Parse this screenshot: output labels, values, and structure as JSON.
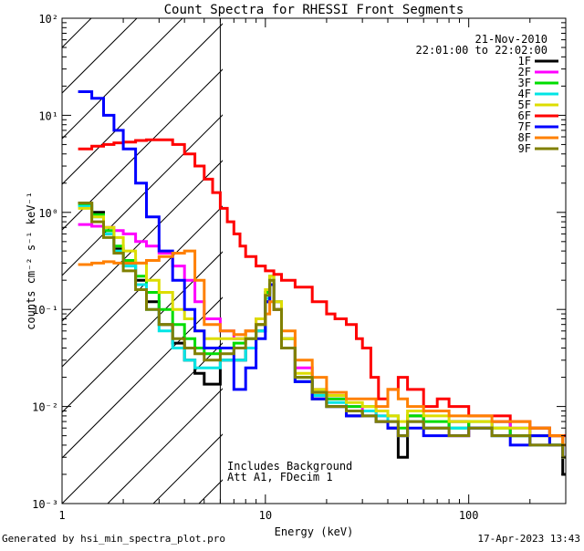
{
  "chart_data": {
    "type": "line",
    "title": "Count Spectra for RHESSI Front Segments",
    "xlabel": "Energy (keV)",
    "ylabel": "counts cm⁻² s⁻¹ keV⁻¹",
    "x_scale": "log",
    "y_scale": "log",
    "xlim": [
      1,
      300
    ],
    "ylim": [
      0.001,
      100
    ],
    "x_ticks": [
      {
        "value": 1,
        "label": "1"
      },
      {
        "value": 10,
        "label": "10"
      },
      {
        "value": 100,
        "label": "100"
      }
    ],
    "y_ticks": [
      {
        "value": 0.001,
        "label": "10⁻³"
      },
      {
        "value": 0.01,
        "label": "10⁻²"
      },
      {
        "value": 0.1,
        "label": "10⁻¹"
      },
      {
        "value": 1,
        "label": "10⁰"
      },
      {
        "value": 10,
        "label": "10¹"
      },
      {
        "value": 100,
        "label": "10²"
      }
    ],
    "hatched_region_x": [
      1,
      6
    ],
    "vertical_marker_x": 6,
    "date": "21-Nov-2010",
    "time_range": "22:01:00 to 22:02:00",
    "annotation_lines": [
      "Includes Background",
      "Att A1, FDecim 1"
    ],
    "legend_position": "top-right",
    "series": [
      {
        "name": "1F",
        "color": "#000000",
        "x": [
          1.2,
          1.4,
          1.6,
          1.8,
          2.0,
          2.3,
          2.6,
          3.0,
          3.5,
          4.0,
          4.5,
          5.0,
          6.0,
          7.0,
          8.0,
          9.0,
          10.0,
          10.5,
          11.0,
          12.0,
          14.0,
          17.0,
          20.0,
          25.0,
          30.0,
          35.0,
          40.0,
          45.0,
          50.0,
          60.0,
          80.0,
          100.0,
          130.0,
          160.0,
          200.0,
          250.0,
          290.0
        ],
        "y": [
          1.25,
          1.0,
          0.6,
          0.42,
          0.3,
          0.2,
          0.12,
          0.07,
          0.045,
          0.03,
          0.022,
          0.017,
          0.03,
          0.03,
          0.04,
          0.06,
          0.12,
          0.18,
          0.1,
          0.04,
          0.018,
          0.012,
          0.01,
          0.008,
          0.009,
          0.007,
          0.006,
          0.003,
          0.008,
          0.006,
          0.007,
          0.006,
          0.007,
          0.005,
          0.006,
          0.005,
          0.002
        ]
      },
      {
        "name": "2F",
        "color": "#ff00ff",
        "x": [
          1.2,
          1.4,
          1.6,
          1.8,
          2.0,
          2.3,
          2.6,
          3.0,
          3.5,
          4.0,
          4.5,
          5.0,
          6.0,
          7.0,
          8.0,
          9.0,
          10.0,
          10.5,
          11.0,
          12.0,
          14.0,
          17.0,
          20.0,
          25.0,
          30.0,
          35.0,
          40.0,
          45.0,
          50.0,
          60.0,
          80.0,
          100.0,
          130.0,
          160.0,
          200.0,
          250.0,
          290.0
        ],
        "y": [
          0.75,
          0.72,
          0.7,
          0.65,
          0.6,
          0.5,
          0.45,
          0.38,
          0.28,
          0.2,
          0.12,
          0.08,
          0.06,
          0.05,
          0.06,
          0.08,
          0.15,
          0.2,
          0.12,
          0.05,
          0.025,
          0.015,
          0.012,
          0.01,
          0.009,
          0.008,
          0.007,
          0.005,
          0.007,
          0.006,
          0.005,
          0.006,
          0.007,
          0.006,
          0.004,
          0.005,
          0.003
        ]
      },
      {
        "name": "3F",
        "color": "#00dd00",
        "x": [
          1.2,
          1.4,
          1.6,
          1.8,
          2.0,
          2.3,
          2.6,
          3.0,
          3.5,
          4.0,
          4.5,
          5.0,
          6.0,
          7.0,
          8.0,
          9.0,
          10.0,
          10.5,
          11.0,
          12.0,
          14.0,
          17.0,
          20.0,
          25.0,
          30.0,
          35.0,
          40.0,
          45.0,
          50.0,
          60.0,
          80.0,
          100.0,
          130.0,
          160.0,
          200.0,
          250.0,
          290.0
        ],
        "y": [
          1.2,
          0.95,
          0.65,
          0.45,
          0.32,
          0.22,
          0.15,
          0.1,
          0.07,
          0.05,
          0.04,
          0.035,
          0.04,
          0.045,
          0.05,
          0.07,
          0.15,
          0.22,
          0.12,
          0.05,
          0.02,
          0.014,
          0.012,
          0.01,
          0.01,
          0.009,
          0.008,
          0.006,
          0.008,
          0.007,
          0.006,
          0.007,
          0.006,
          0.005,
          0.005,
          0.004,
          0.004
        ]
      },
      {
        "name": "4F",
        "color": "#00e5e5",
        "x": [
          1.2,
          1.4,
          1.6,
          1.8,
          2.0,
          2.3,
          2.6,
          3.0,
          3.5,
          4.0,
          4.5,
          5.0,
          6.0,
          7.0,
          8.0,
          9.0,
          10.0,
          10.5,
          11.0,
          12.0,
          14.0,
          17.0,
          20.0,
          25.0,
          30.0,
          35.0,
          40.0,
          45.0,
          50.0,
          60.0,
          80.0,
          100.0,
          130.0,
          160.0,
          200.0,
          250.0,
          290.0
        ],
        "y": [
          1.15,
          0.9,
          0.6,
          0.4,
          0.28,
          0.18,
          0.1,
          0.06,
          0.04,
          0.03,
          0.025,
          0.025,
          0.03,
          0.03,
          0.04,
          0.06,
          0.13,
          0.2,
          0.1,
          0.04,
          0.018,
          0.013,
          0.011,
          0.009,
          0.009,
          0.008,
          0.007,
          0.005,
          0.007,
          0.006,
          0.006,
          0.006,
          0.005,
          0.005,
          0.004,
          0.004,
          0.003
        ]
      },
      {
        "name": "5F",
        "color": "#dddd00",
        "x": [
          1.2,
          1.4,
          1.6,
          1.8,
          2.0,
          2.3,
          2.6,
          3.0,
          3.5,
          4.0,
          4.5,
          5.0,
          6.0,
          7.0,
          8.0,
          9.0,
          10.0,
          10.5,
          11.0,
          12.0,
          14.0,
          17.0,
          20.0,
          25.0,
          30.0,
          35.0,
          40.0,
          45.0,
          50.0,
          60.0,
          80.0,
          100.0,
          130.0,
          160.0,
          200.0,
          250.0,
          290.0
        ],
        "y": [
          1.1,
          0.9,
          0.7,
          0.55,
          0.4,
          0.3,
          0.2,
          0.15,
          0.1,
          0.08,
          0.06,
          0.05,
          0.05,
          0.05,
          0.06,
          0.08,
          0.16,
          0.22,
          0.12,
          0.05,
          0.022,
          0.015,
          0.013,
          0.011,
          0.01,
          0.009,
          0.008,
          0.007,
          0.009,
          0.008,
          0.007,
          0.007,
          0.006,
          0.006,
          0.005,
          0.005,
          0.004
        ]
      },
      {
        "name": "6F",
        "color": "#ff0000",
        "x": [
          1.2,
          1.4,
          1.6,
          1.8,
          2.0,
          2.3,
          2.6,
          3.0,
          3.5,
          4.0,
          4.5,
          5.0,
          5.5,
          6.0,
          6.5,
          7.0,
          7.5,
          8.0,
          9.0,
          10.0,
          11.0,
          12.0,
          14.0,
          17.0,
          20.0,
          22.0,
          25.0,
          28.0,
          30.0,
          33.0,
          36.0,
          40.0,
          45.0,
          50.0,
          60.0,
          70.0,
          80.0,
          100.0,
          130.0,
          160.0,
          200.0,
          250.0,
          290.0
        ],
        "y": [
          4.5,
          4.8,
          5.0,
          5.2,
          5.3,
          5.5,
          5.6,
          5.6,
          5.0,
          4.0,
          3.0,
          2.2,
          1.6,
          1.1,
          0.8,
          0.6,
          0.45,
          0.35,
          0.28,
          0.25,
          0.23,
          0.2,
          0.17,
          0.12,
          0.09,
          0.08,
          0.07,
          0.05,
          0.04,
          0.02,
          0.012,
          0.015,
          0.02,
          0.015,
          0.01,
          0.012,
          0.01,
          0.008,
          0.008,
          0.007,
          0.006,
          0.005,
          0.005
        ]
      },
      {
        "name": "7F",
        "color": "#0000ff",
        "x": [
          1.2,
          1.4,
          1.6,
          1.8,
          2.0,
          2.3,
          2.6,
          3.0,
          3.5,
          4.0,
          4.5,
          5.0,
          6.0,
          7.0,
          8.0,
          9.0,
          10.0,
          10.5,
          11.0,
          12.0,
          14.0,
          17.0,
          20.0,
          25.0,
          30.0,
          35.0,
          40.0,
          45.0,
          50.0,
          60.0,
          80.0,
          100.0,
          130.0,
          160.0,
          200.0,
          250.0,
          290.0
        ],
        "y": [
          17.5,
          15.0,
          10.0,
          7.0,
          4.5,
          2.0,
          0.9,
          0.4,
          0.2,
          0.1,
          0.06,
          0.04,
          0.04,
          0.015,
          0.025,
          0.05,
          0.12,
          0.18,
          0.1,
          0.04,
          0.018,
          0.012,
          0.01,
          0.008,
          0.008,
          0.007,
          0.006,
          0.005,
          0.006,
          0.005,
          0.005,
          0.006,
          0.005,
          0.004,
          0.005,
          0.004,
          0.003
        ]
      },
      {
        "name": "8F",
        "color": "#ff8000",
        "x": [
          1.2,
          1.4,
          1.6,
          1.8,
          2.0,
          2.3,
          2.6,
          3.0,
          3.5,
          4.0,
          4.5,
          5.0,
          6.0,
          7.0,
          8.0,
          9.0,
          10.0,
          10.5,
          11.0,
          12.0,
          14.0,
          17.0,
          20.0,
          25.0,
          30.0,
          35.0,
          40.0,
          45.0,
          50.0,
          60.0,
          80.0,
          100.0,
          130.0,
          160.0,
          200.0,
          250.0,
          290.0
        ],
        "y": [
          0.29,
          0.3,
          0.31,
          0.3,
          0.3,
          0.3,
          0.32,
          0.35,
          0.38,
          0.4,
          0.2,
          0.07,
          0.06,
          0.055,
          0.06,
          0.07,
          0.09,
          0.12,
          0.1,
          0.06,
          0.03,
          0.02,
          0.014,
          0.012,
          0.012,
          0.01,
          0.015,
          0.012,
          0.01,
          0.009,
          0.008,
          0.008,
          0.007,
          0.007,
          0.006,
          0.005,
          0.004
        ]
      },
      {
        "name": "9F",
        "color": "#808000",
        "x": [
          1.2,
          1.4,
          1.6,
          1.8,
          2.0,
          2.3,
          2.6,
          3.0,
          3.5,
          4.0,
          4.5,
          5.0,
          6.0,
          7.0,
          8.0,
          9.0,
          10.0,
          10.5,
          11.0,
          12.0,
          14.0,
          17.0,
          20.0,
          25.0,
          30.0,
          35.0,
          40.0,
          45.0,
          50.0,
          60.0,
          80.0,
          100.0,
          130.0,
          160.0,
          200.0,
          250.0,
          290.0
        ],
        "y": [
          1.25,
          0.8,
          0.55,
          0.38,
          0.25,
          0.16,
          0.1,
          0.07,
          0.05,
          0.04,
          0.035,
          0.03,
          0.035,
          0.04,
          0.05,
          0.07,
          0.14,
          0.2,
          0.1,
          0.04,
          0.02,
          0.014,
          0.01,
          0.009,
          0.008,
          0.007,
          0.007,
          0.005,
          0.007,
          0.006,
          0.005,
          0.006,
          0.005,
          0.005,
          0.004,
          0.004,
          0.003
        ]
      }
    ]
  },
  "footer": {
    "left": "Generated by hsi_min_spectra_plot.pro",
    "right": "17-Apr-2023 13:43"
  }
}
